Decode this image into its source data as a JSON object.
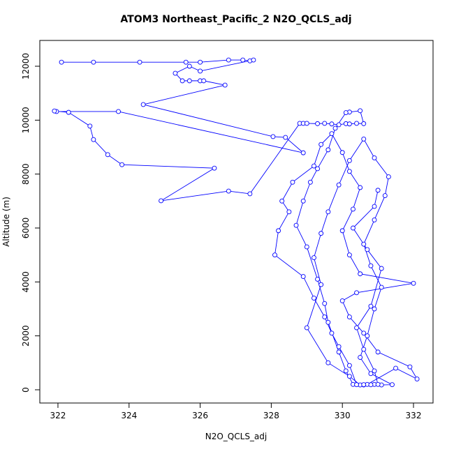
{
  "chart_data": {
    "type": "line",
    "title": "ATOM3 Northeast_Pacific_2 N2O_QCLS_adj",
    "x_label": "N2O_QCLS_adj",
    "y_label": "Altitude (m)",
    "xlim": [
      321.49,
      332.55
    ],
    "ylim": [
      -491,
      12957
    ],
    "xticks": [
      322,
      324,
      326,
      328,
      330,
      332
    ],
    "yticks": [
      0,
      2000,
      4000,
      6000,
      8000,
      10000,
      12000
    ],
    "x": [
      322.1,
      323.0,
      324.3,
      325.6,
      326.0,
      326.8,
      327.2,
      327.4,
      327.5,
      326.0,
      325.7,
      325.3,
      325.5,
      325.7,
      326.0,
      326.1,
      326.7,
      324.4,
      328.05,
      328.4,
      328.9,
      323.7,
      321.96,
      321.9,
      322.3,
      322.9,
      323.0,
      323.4,
      323.8,
      326.4,
      324.9,
      326.8,
      327.4,
      328.8,
      328.9,
      329.0,
      329.3,
      329.5,
      329.7,
      329.9,
      330.1,
      330.2,
      330.4,
      330.6,
      330.5,
      330.2,
      330.1,
      329.8,
      329.6,
      329.3,
      329.1,
      328.9,
      328.7,
      329.0,
      329.3,
      329.5,
      329.6,
      329.9,
      330.1,
      330.3,
      330.6,
      330.9,
      331.1,
      331.4,
      330.8,
      330.5,
      330.7,
      330.9,
      331.1,
      330.8,
      330.6,
      330.9,
      331.2,
      331.3,
      330.9,
      330.6,
      330.2,
      329.9,
      329.6,
      329.4,
      329.2,
      329.4,
      329.0,
      329.6,
      330.2,
      330.5,
      330.7,
      331.5,
      332.1,
      331.9,
      331.0,
      330.6,
      330.2,
      330.0,
      330.4,
      332.0,
      330.5,
      330.2,
      330.0,
      330.3,
      330.5,
      330.2,
      330.0,
      329.7,
      329.4,
      329.2,
      328.6,
      328.3,
      328.5,
      328.2,
      328.1,
      328.9,
      329.2,
      329.5,
      329.7,
      329.9,
      330.2,
      330.4,
      330.6,
      330.8,
      331.0,
      330.9,
      330.6,
      330.4,
      330.8,
      331.1,
      330.7,
      330.3,
      330.9,
      331.0
    ],
    "series": [
      {
        "name": "N2O_QCLS_adj",
        "color": "#0000ff",
        "values": [
          12150,
          12150,
          12150,
          12150,
          12150,
          12230,
          12230,
          12200,
          12230,
          11820,
          12000,
          11740,
          11460,
          11460,
          11460,
          11460,
          11300,
          10580,
          9390,
          9360,
          8790,
          10320,
          10320,
          10340,
          10290,
          9780,
          9280,
          8720,
          8350,
          8220,
          7010,
          7370,
          7270,
          9880,
          9880,
          9880,
          9870,
          9880,
          9860,
          9830,
          9870,
          9860,
          9880,
          9870,
          10350,
          10300,
          10280,
          9700,
          8900,
          8200,
          7700,
          7000,
          6100,
          5300,
          4100,
          3200,
          2500,
          1400,
          700,
          200,
          180,
          200,
          180,
          190,
          600,
          1200,
          2000,
          3000,
          3800,
          4600,
          5400,
          6300,
          7200,
          7900,
          8600,
          9300,
          8500,
          7600,
          6600,
          5800,
          4900,
          3900,
          2300,
          1000,
          500,
          180,
          200,
          800,
          400,
          850,
          1400,
          2100,
          2700,
          3300,
          3600,
          3950,
          4300,
          5000,
          5900,
          6700,
          7500,
          8100,
          8800,
          9500,
          9100,
          8300,
          7700,
          7000,
          6600,
          5900,
          5000,
          4200,
          3400,
          2700,
          2100,
          1600,
          900,
          190,
          190,
          185,
          200,
          700,
          1500,
          2300,
          3100,
          4500,
          5200,
          6000,
          6800,
          7400
        ]
      }
    ]
  }
}
